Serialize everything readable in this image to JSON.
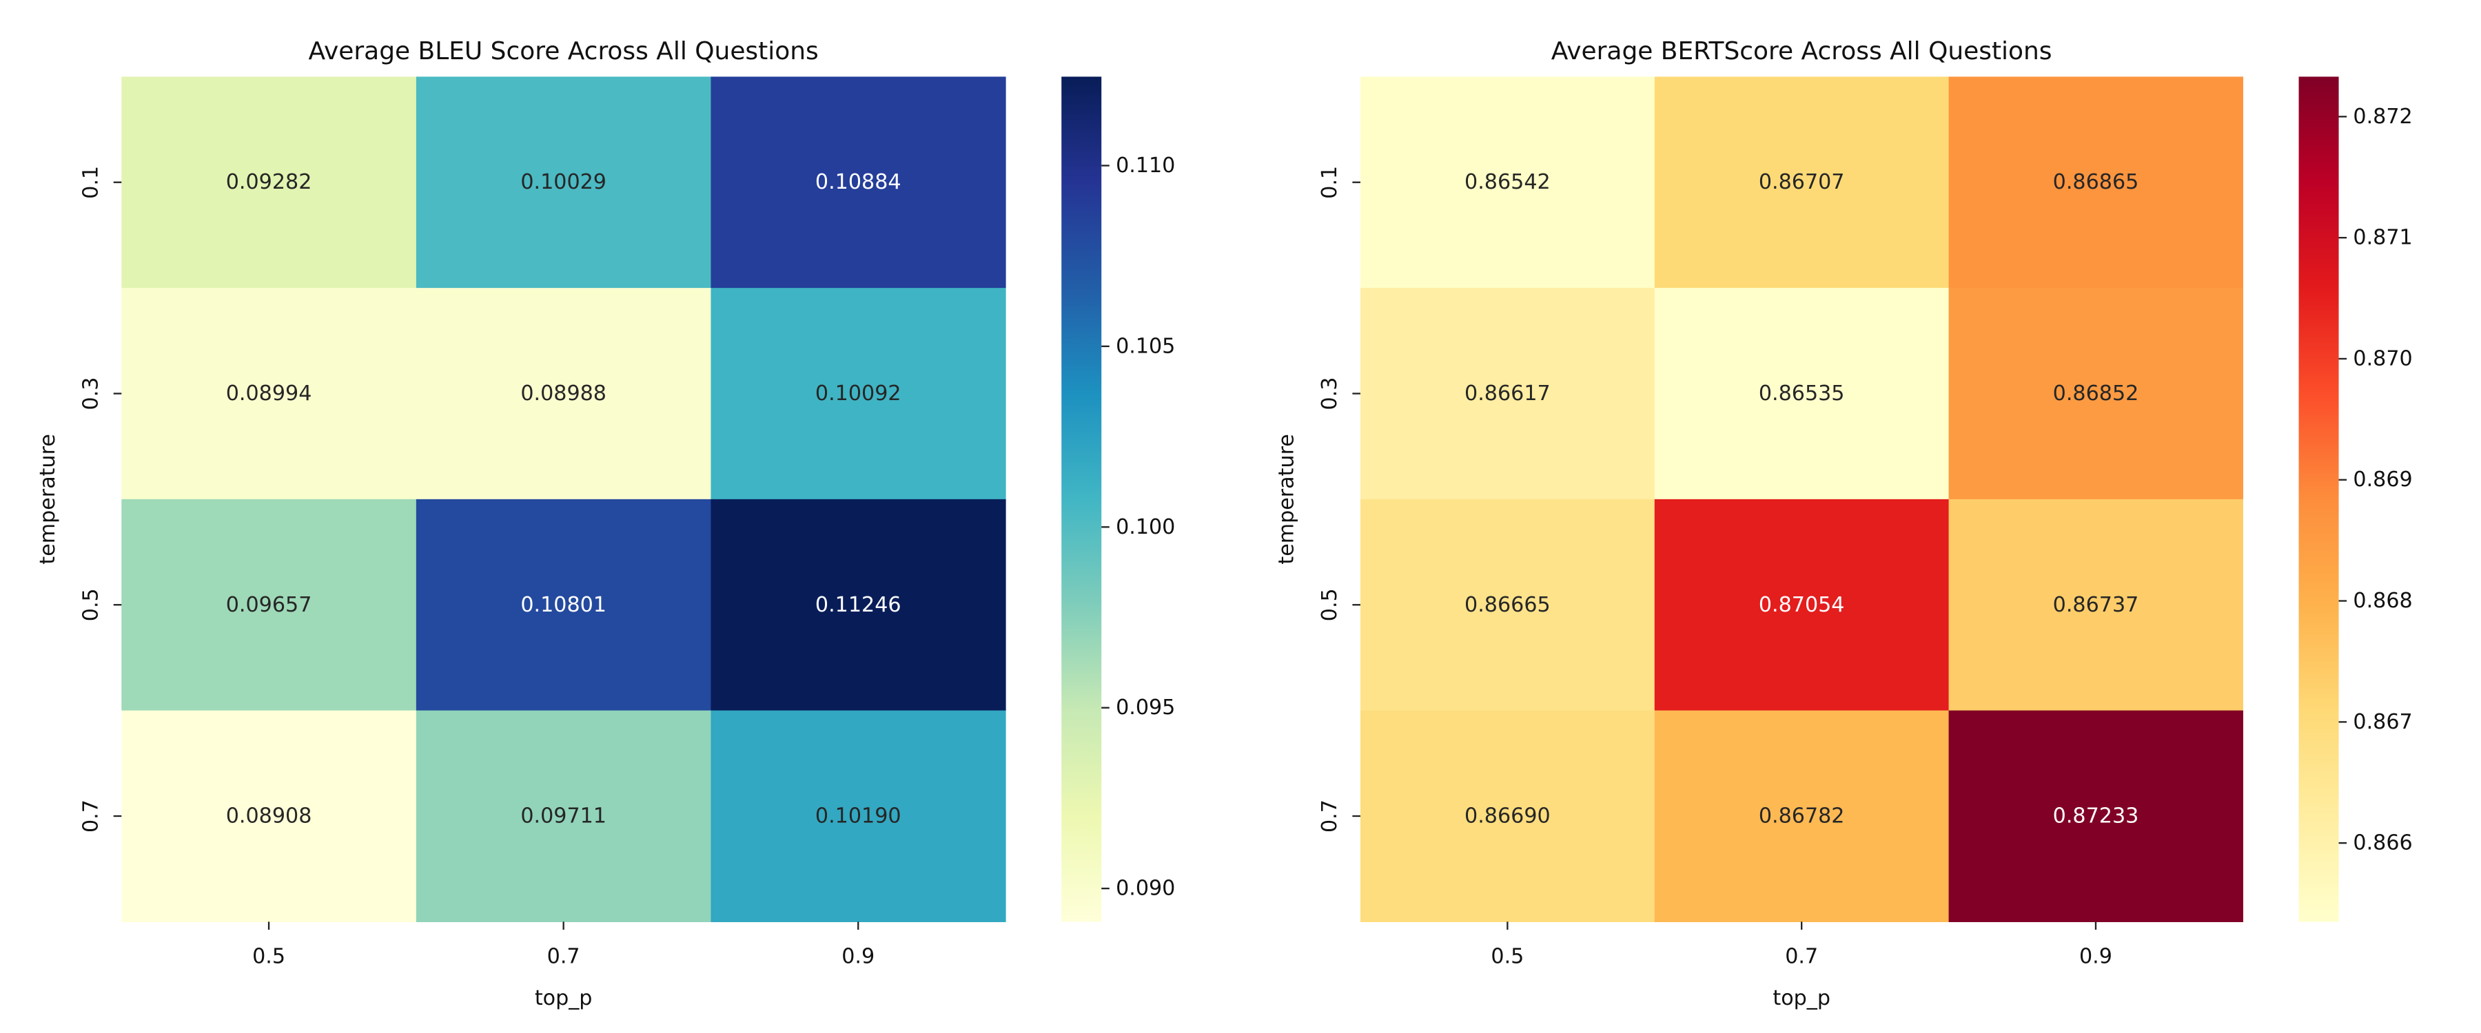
{
  "chart_data": [
    {
      "type": "heatmap",
      "title": "Average BLEU Score Across All Questions",
      "xlabel": "top_p",
      "ylabel": "temperature",
      "x": [
        "0.5",
        "0.7",
        "0.9"
      ],
      "y": [
        "0.1",
        "0.3",
        "0.5",
        "0.7"
      ],
      "values": [
        [
          0.09282,
          0.10029,
          0.10884
        ],
        [
          0.08994,
          0.08988,
          0.10092
        ],
        [
          0.09657,
          0.10801,
          0.11246
        ],
        [
          0.08908,
          0.09711,
          0.1019
        ]
      ],
      "value_labels": [
        [
          "0.09282",
          "0.10029",
          "0.10884"
        ],
        [
          "0.08994",
          "0.08988",
          "0.10092"
        ],
        [
          "0.09657",
          "0.10801",
          "0.11246"
        ],
        [
          "0.08908",
          "0.09711",
          "0.10190"
        ]
      ],
      "colormap": "YlGnBu",
      "colormap_stops": [
        "#ffffd9",
        "#edf8b1",
        "#c7e9b4",
        "#7fcdbb",
        "#41b6c4",
        "#1d91c0",
        "#225ea8",
        "#253494",
        "#081d58"
      ],
      "color_range": [
        0.08908,
        0.11246
      ],
      "colorbar_ticks": [
        0.09,
        0.095,
        0.1,
        0.105,
        0.11
      ],
      "colorbar_tick_labels": [
        "0.090",
        "0.095",
        "0.100",
        "0.105",
        "0.110"
      ],
      "legend": "right"
    },
    {
      "type": "heatmap",
      "title": "Average BERTScore Across All Questions",
      "xlabel": "top_p",
      "ylabel": "temperature",
      "x": [
        "0.5",
        "0.7",
        "0.9"
      ],
      "y": [
        "0.1",
        "0.3",
        "0.5",
        "0.7"
      ],
      "values": [
        [
          0.86542,
          0.86707,
          0.86865
        ],
        [
          0.86617,
          0.86535,
          0.86852
        ],
        [
          0.86665,
          0.87054,
          0.86737
        ],
        [
          0.8669,
          0.86782,
          0.87233
        ]
      ],
      "value_labels": [
        [
          "0.86542",
          "0.86707",
          "0.86865"
        ],
        [
          "0.86617",
          "0.86535",
          "0.86852"
        ],
        [
          "0.86665",
          "0.87054",
          "0.86737"
        ],
        [
          "0.86690",
          "0.86782",
          "0.87233"
        ]
      ],
      "colormap": "YlOrRd",
      "colormap_stops": [
        "#ffffcc",
        "#ffeda0",
        "#fed976",
        "#feb24c",
        "#fd8d3c",
        "#fc4e2a",
        "#e31a1c",
        "#bd0026",
        "#800026"
      ],
      "color_range": [
        0.86535,
        0.87233
      ],
      "colorbar_ticks": [
        0.866,
        0.867,
        0.868,
        0.869,
        0.87,
        0.871,
        0.872
      ],
      "colorbar_tick_labels": [
        "0.866",
        "0.867",
        "0.868",
        "0.869",
        "0.870",
        "0.871",
        "0.872"
      ],
      "legend": "right"
    }
  ]
}
